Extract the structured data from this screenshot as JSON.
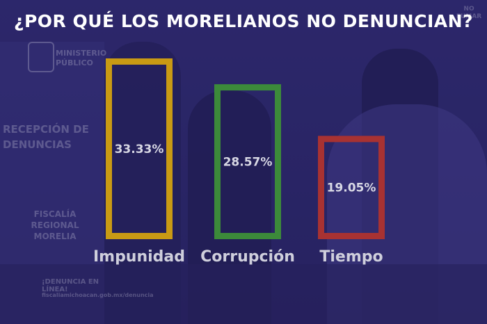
{
  "chart_data": {
    "type": "bar",
    "title": "¿POR QUÉ LOS MORELIANOS NO DENUNCIAN?",
    "categories": [
      "Impunidad",
      "Corrupción",
      "Tiempo"
    ],
    "values": [
      33.33,
      28.57,
      19.05
    ],
    "value_labels": [
      "33.33%",
      "28.57%",
      "19.05%"
    ],
    "colors": [
      "#c99a14",
      "#3c8a3a",
      "#a83232"
    ],
    "ylim": [
      0,
      33.33
    ],
    "bar_style": "outline",
    "grid": false,
    "legend": "none"
  },
  "background": {
    "sign_ministerio": "MINISTERIO PÚBLICO",
    "sign_recepcion": "RECEPCIÓN DE DENUNCIAS",
    "sign_fiscalia": "FISCALÍA REGIONAL MORELIA",
    "sign_linea": "¡DENUNCIA EN LÍNEA!",
    "sign_url": "fiscaliamichoacan.gob.mx/denuncia",
    "sign_fumar": "NO FUMAR",
    "overlay_color": "#2a2660"
  }
}
